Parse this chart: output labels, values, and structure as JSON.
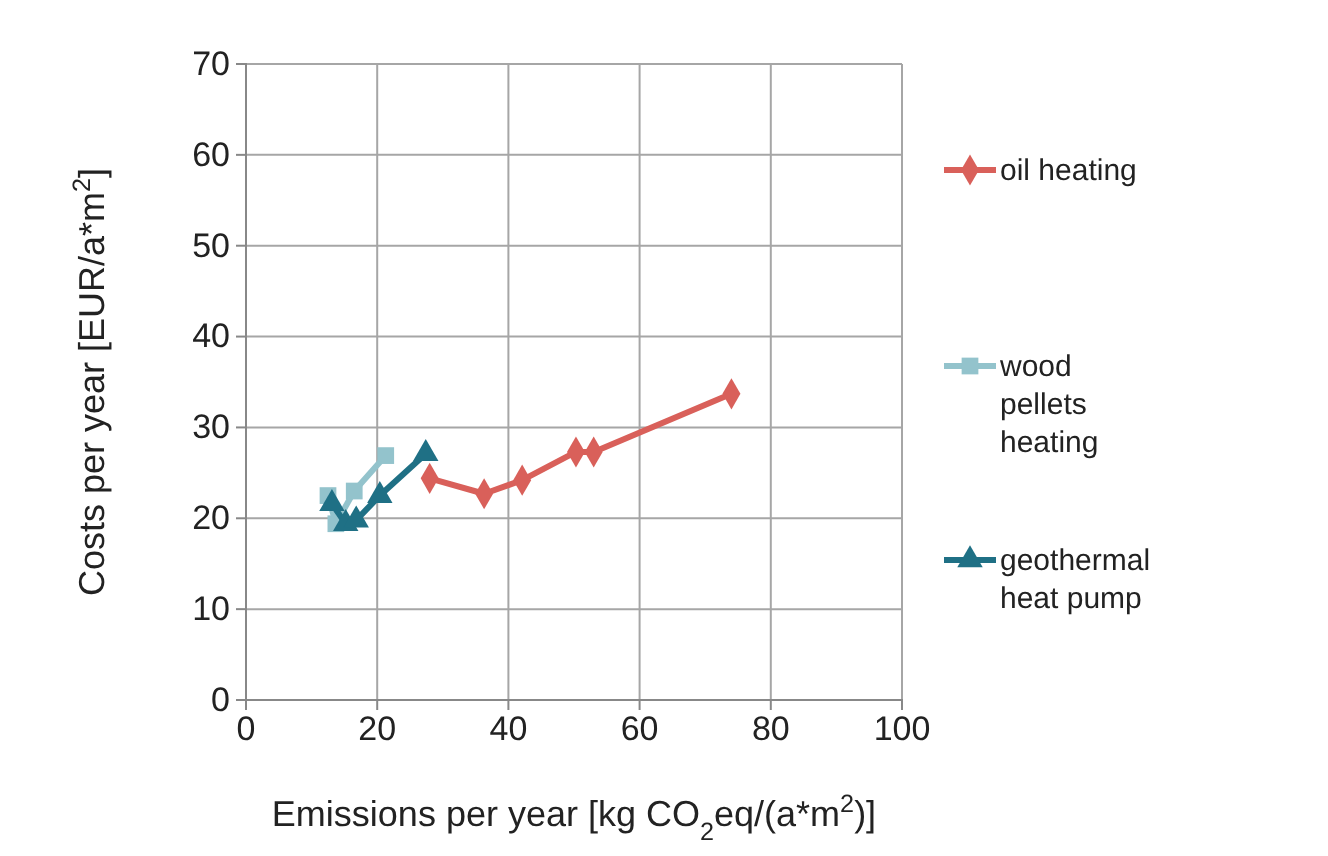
{
  "chart_data": {
    "type": "line",
    "xlabel": "Emissions per year [kg CO$_{2}$eq/(a*m$^{2}$)]",
    "ylabel": "Costs per year [EUR/a*m$^{2}$]",
    "xlim": [
      0,
      100
    ],
    "xticks": [
      0,
      20,
      40,
      60,
      80,
      100
    ],
    "ylim": [
      0,
      70
    ],
    "yticks": [
      0,
      10,
      20,
      30,
      40,
      50,
      60,
      70
    ],
    "grid": true,
    "legend": "right",
    "line_style": "solid",
    "series": [
      {
        "name": "oil heating",
        "color": "#d9605a",
        "marker": "diamond",
        "x": [
          28,
          36.3,
          42.1,
          50.3,
          53,
          74
        ],
        "values": [
          24.4,
          22.7,
          24.2,
          27.3,
          27.3,
          33.7
        ]
      },
      {
        "name": "wood pellets heating",
        "color": "#93c3cc",
        "marker": "square",
        "x": [
          12.5,
          13.7,
          16.5,
          21.3
        ],
        "values": [
          22.5,
          19.4,
          23,
          26.9
        ]
      },
      {
        "name": "geothermal heat pump",
        "color": "#1f7085",
        "marker": "triangle",
        "x": [
          13.1,
          15.2,
          16.8,
          20.4,
          27.4
        ],
        "values": [
          21.6,
          19.4,
          19.8,
          22.5,
          27.1
        ]
      }
    ]
  }
}
